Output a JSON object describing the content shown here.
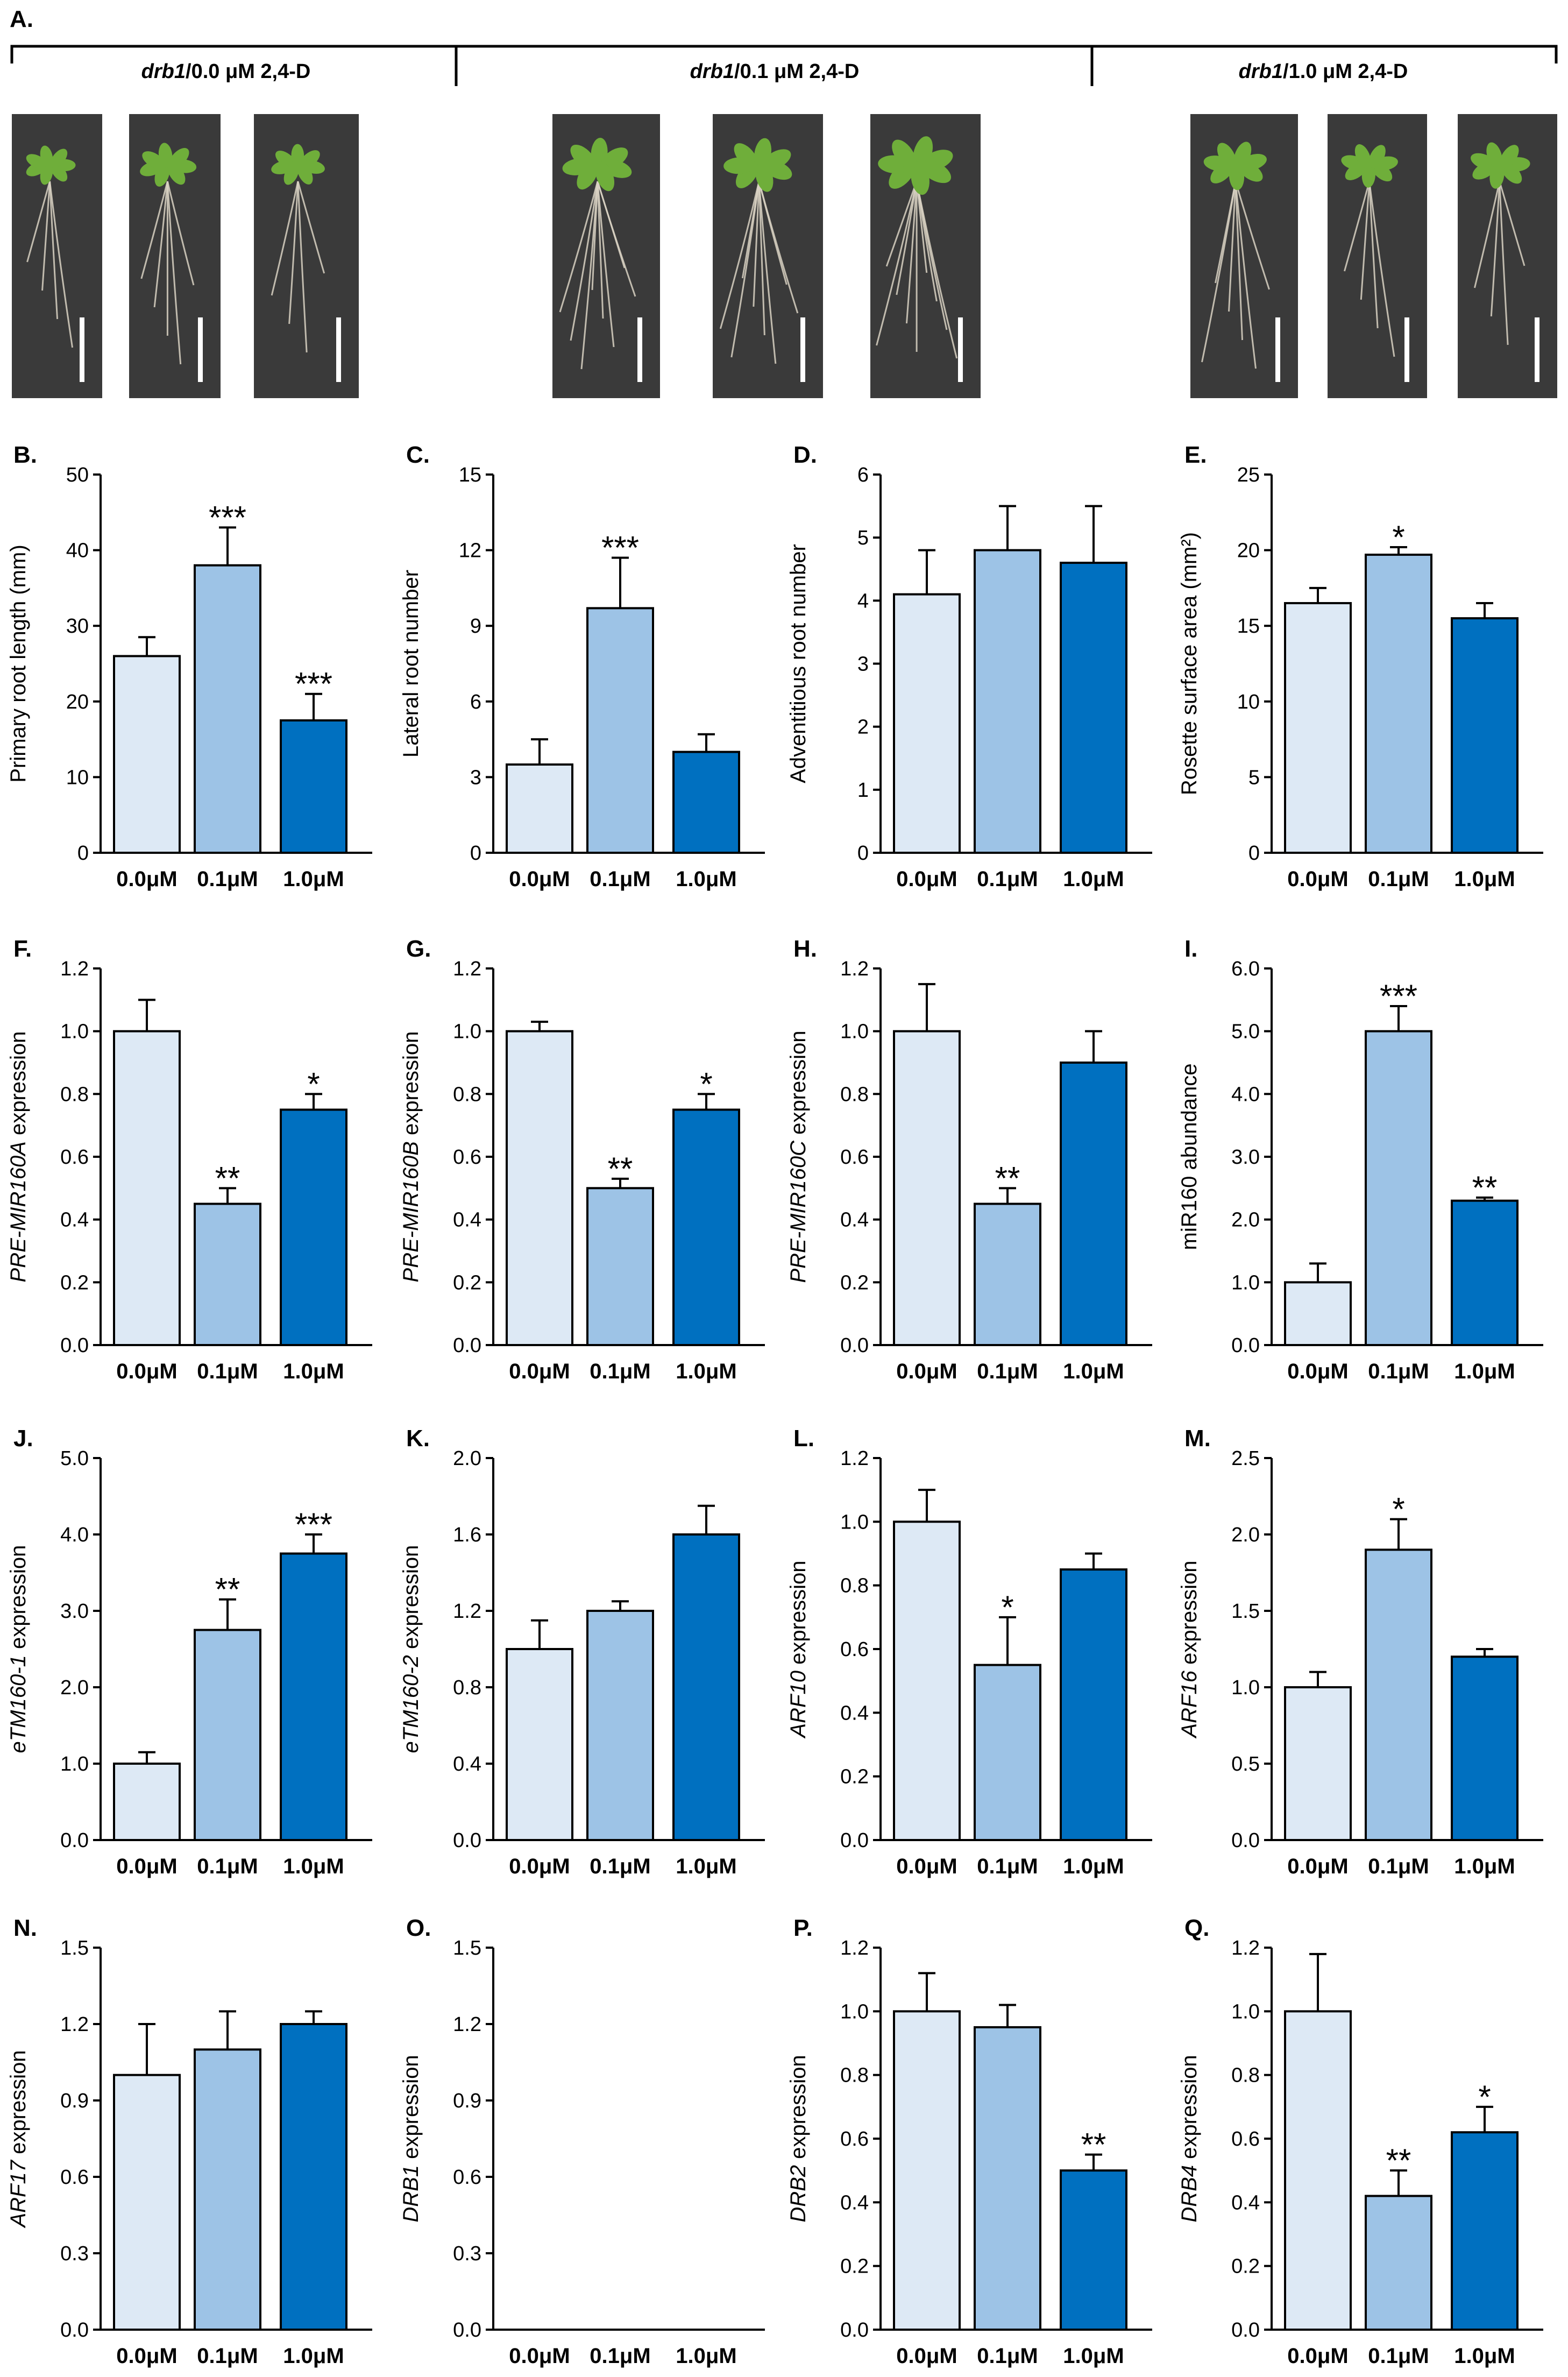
{
  "panel_a": {
    "letter": "A.",
    "groups": [
      {
        "genotype": "drb1",
        "treatment": "/0.0 μM 2,4-D"
      },
      {
        "genotype": "drb1",
        "treatment": "/0.1 μM 2,4-D"
      },
      {
        "genotype": "drb1",
        "treatment": "/1.0 μM 2,4-D"
      }
    ]
  },
  "colors": {
    "bar_light": "#dde9f5",
    "bar_mid": "#9dc3e6",
    "bar_dark": "#0070c0",
    "outline": "#000000",
    "photo_background": "#3a3a3a",
    "leaf": "#6fae3a",
    "root": "#d9d2c3",
    "scale_bar": "#ffffff"
  },
  "chart_data": [
    {
      "panel": "B.",
      "type": "bar",
      "ylabel": "Primary root length (mm)",
      "ylabel_italic": "",
      "ylabel_rest": "",
      "ylim": [
        0,
        50
      ],
      "yticks": [
        "0",
        "10",
        "20",
        "30",
        "40",
        "50"
      ],
      "categories": [
        "0.0μM",
        "0.1μM",
        "1.0μM"
      ],
      "values": [
        26,
        38,
        17.5
      ],
      "errors": [
        2.5,
        5,
        3.5
      ],
      "significance": [
        "",
        "***",
        "***"
      ]
    },
    {
      "panel": "C.",
      "type": "bar",
      "ylabel": "Lateral root number",
      "ylabel_italic": "",
      "ylabel_rest": "",
      "ylim": [
        0,
        15
      ],
      "yticks": [
        "0",
        "3",
        "6",
        "9",
        "12",
        "15"
      ],
      "categories": [
        "0.0μM",
        "0.1μM",
        "1.0μM"
      ],
      "values": [
        3.5,
        9.7,
        4
      ],
      "errors": [
        1,
        2,
        0.7
      ],
      "significance": [
        "",
        "***",
        ""
      ]
    },
    {
      "panel": "D.",
      "type": "bar",
      "ylabel": "Adventitious root number",
      "ylabel_italic": "",
      "ylabel_rest": "",
      "ylim": [
        0,
        6
      ],
      "yticks": [
        "0",
        "1",
        "2",
        "3",
        "4",
        "5",
        "6"
      ],
      "categories": [
        "0.0μM",
        "0.1μM",
        "1.0μM"
      ],
      "values": [
        4.1,
        4.8,
        4.6
      ],
      "errors": [
        0.7,
        0.7,
        0.9
      ],
      "significance": [
        "",
        "",
        ""
      ]
    },
    {
      "panel": "E.",
      "type": "bar",
      "ylabel": "Rosette surface area (mm²)",
      "ylabel_italic": "",
      "ylabel_rest": "",
      "ylim": [
        0,
        25
      ],
      "yticks": [
        "0",
        "5",
        "10",
        "15",
        "20",
        "25"
      ],
      "categories": [
        "0.0μM",
        "0.1μM",
        "1.0μM"
      ],
      "values": [
        16.5,
        19.7,
        15.5
      ],
      "errors": [
        1,
        0.5,
        1
      ],
      "significance": [
        "",
        "*",
        ""
      ]
    },
    {
      "panel": "F.",
      "type": "bar",
      "ylabel": "PRE-MIR160A expression",
      "ylabel_italic": "PRE-MIR160A",
      "ylabel_rest": " expression",
      "ylim": [
        0,
        1.2
      ],
      "yticks": [
        "0.0",
        "0.2",
        "0.4",
        "0.6",
        "0.8",
        "1.0",
        "1.2"
      ],
      "categories": [
        "0.0μM",
        "0.1μM",
        "1.0μM"
      ],
      "values": [
        1.0,
        0.45,
        0.75
      ],
      "errors": [
        0.1,
        0.05,
        0.05
      ],
      "significance": [
        "",
        "**",
        "*"
      ]
    },
    {
      "panel": "G.",
      "type": "bar",
      "ylabel": "PRE-MIR160B expression",
      "ylabel_italic": "PRE-MIR160B",
      "ylabel_rest": " expression",
      "ylim": [
        0,
        1.2
      ],
      "yticks": [
        "0.0",
        "0.2",
        "0.4",
        "0.6",
        "0.8",
        "1.0",
        "1.2"
      ],
      "categories": [
        "0.0μM",
        "0.1μM",
        "1.0μM"
      ],
      "values": [
        1.0,
        0.5,
        0.75
      ],
      "errors": [
        0.03,
        0.03,
        0.05
      ],
      "significance": [
        "",
        "**",
        "*"
      ]
    },
    {
      "panel": "H.",
      "type": "bar",
      "ylabel": "PRE-MIR160C expression",
      "ylabel_italic": "PRE-MIR160C",
      "ylabel_rest": " expression",
      "ylim": [
        0,
        1.2
      ],
      "yticks": [
        "0.0",
        "0.2",
        "0.4",
        "0.6",
        "0.8",
        "1.0",
        "1.2"
      ],
      "categories": [
        "0.0μM",
        "0.1μM",
        "1.0μM"
      ],
      "values": [
        1.0,
        0.45,
        0.9
      ],
      "errors": [
        0.15,
        0.05,
        0.1
      ],
      "significance": [
        "",
        "**",
        ""
      ]
    },
    {
      "panel": "I.",
      "type": "bar",
      "ylabel": "miR160 abundance",
      "ylabel_italic": "",
      "ylabel_rest": "",
      "ylim": [
        0,
        6
      ],
      "yticks": [
        "0.0",
        "1.0",
        "2.0",
        "3.0",
        "4.0",
        "5.0",
        "6.0"
      ],
      "categories": [
        "0.0μM",
        "0.1μM",
        "1.0μM"
      ],
      "values": [
        1.0,
        5.0,
        2.3
      ],
      "errors": [
        0.3,
        0.4,
        0.05
      ],
      "significance": [
        "",
        "***",
        "**"
      ]
    },
    {
      "panel": "J.",
      "type": "bar",
      "ylabel": "eTM160-1 expression",
      "ylabel_italic": "eTM160-1",
      "ylabel_rest": " expression",
      "ylim": [
        0,
        5
      ],
      "yticks": [
        "0.0",
        "1.0",
        "2.0",
        "3.0",
        "4.0",
        "5.0"
      ],
      "categories": [
        "0.0μM",
        "0.1μM",
        "1.0μM"
      ],
      "values": [
        1.0,
        2.75,
        3.75
      ],
      "errors": [
        0.15,
        0.4,
        0.25
      ],
      "significance": [
        "",
        "**",
        "***"
      ]
    },
    {
      "panel": "K.",
      "type": "bar",
      "ylabel": "eTM160-2 expression",
      "ylabel_italic": "eTM160-2",
      "ylabel_rest": " expression",
      "ylim": [
        0,
        2
      ],
      "yticks": [
        "0.0",
        "0.4",
        "0.8",
        "1.2",
        "1.6",
        "2.0"
      ],
      "categories": [
        "0.0μM",
        "0.1μM",
        "1.0μM"
      ],
      "values": [
        1.0,
        1.2,
        1.6
      ],
      "errors": [
        0.15,
        0.05,
        0.15
      ],
      "significance": [
        "",
        "",
        ""
      ]
    },
    {
      "panel": "L.",
      "type": "bar",
      "ylabel": "ARF10 expression",
      "ylabel_italic": "ARF10",
      "ylabel_rest": " expression",
      "ylim": [
        0,
        1.2
      ],
      "yticks": [
        "0.0",
        "0.2",
        "0.4",
        "0.6",
        "0.8",
        "1.0",
        "1.2"
      ],
      "categories": [
        "0.0μM",
        "0.1μM",
        "1.0μM"
      ],
      "values": [
        1.0,
        0.55,
        0.85
      ],
      "errors": [
        0.1,
        0.15,
        0.05
      ],
      "significance": [
        "",
        "*",
        ""
      ]
    },
    {
      "panel": "M.",
      "type": "bar",
      "ylabel": "ARF16 expression",
      "ylabel_italic": "ARF16",
      "ylabel_rest": " expression",
      "ylim": [
        0,
        2.5
      ],
      "yticks": [
        "0.0",
        "0.5",
        "1.0",
        "1.5",
        "2.0",
        "2.5"
      ],
      "categories": [
        "0.0μM",
        "0.1μM",
        "1.0μM"
      ],
      "values": [
        1.0,
        1.9,
        1.2
      ],
      "errors": [
        0.1,
        0.2,
        0.05
      ],
      "significance": [
        "",
        "*",
        ""
      ]
    },
    {
      "panel": "N.",
      "type": "bar",
      "ylabel": "ARF17 expression",
      "ylabel_italic": "ARF17",
      "ylabel_rest": " expression",
      "ylim": [
        0,
        1.5
      ],
      "yticks": [
        "0.0",
        "0.3",
        "0.6",
        "0.9",
        "1.2",
        "1.5"
      ],
      "categories": [
        "0.0μM",
        "0.1μM",
        "1.0μM"
      ],
      "values": [
        1.0,
        1.1,
        1.2
      ],
      "errors": [
        0.2,
        0.15,
        0.05
      ],
      "significance": [
        "",
        "",
        ""
      ]
    },
    {
      "panel": "O.",
      "type": "bar",
      "ylabel": "DRB1 expression",
      "ylabel_italic": "DRB1",
      "ylabel_rest": " expression",
      "ylim": [
        0,
        1.5
      ],
      "yticks": [
        "0.0",
        "0.3",
        "0.6",
        "0.9",
        "1.2",
        "1.5"
      ],
      "categories": [
        "0.0μM",
        "0.1μM",
        "1.0μM"
      ],
      "values": [
        0,
        0,
        0
      ],
      "errors": [
        0,
        0,
        0
      ],
      "significance": [
        "",
        "",
        ""
      ]
    },
    {
      "panel": "P.",
      "type": "bar",
      "ylabel": "DRB2 expression",
      "ylabel_italic": "DRB2",
      "ylabel_rest": " expression",
      "ylim": [
        0,
        1.2
      ],
      "yticks": [
        "0.0",
        "0.2",
        "0.4",
        "0.6",
        "0.8",
        "1.0",
        "1.2"
      ],
      "categories": [
        "0.0μM",
        "0.1μM",
        "1.0μM"
      ],
      "values": [
        1.0,
        0.95,
        0.5
      ],
      "errors": [
        0.12,
        0.07,
        0.05
      ],
      "significance": [
        "",
        "",
        "**"
      ]
    },
    {
      "panel": "Q.",
      "type": "bar",
      "ylabel": "DRB4 expression",
      "ylabel_italic": "DRB4",
      "ylabel_rest": " expression",
      "ylim": [
        0,
        1.2
      ],
      "yticks": [
        "0.0",
        "0.2",
        "0.4",
        "0.6",
        "0.8",
        "1.0",
        "1.2"
      ],
      "categories": [
        "0.0μM",
        "0.1μM",
        "1.0μM"
      ],
      "values": [
        1.0,
        0.42,
        0.62
      ],
      "errors": [
        0.18,
        0.08,
        0.08
      ],
      "significance": [
        "",
        "**",
        "*"
      ]
    }
  ]
}
